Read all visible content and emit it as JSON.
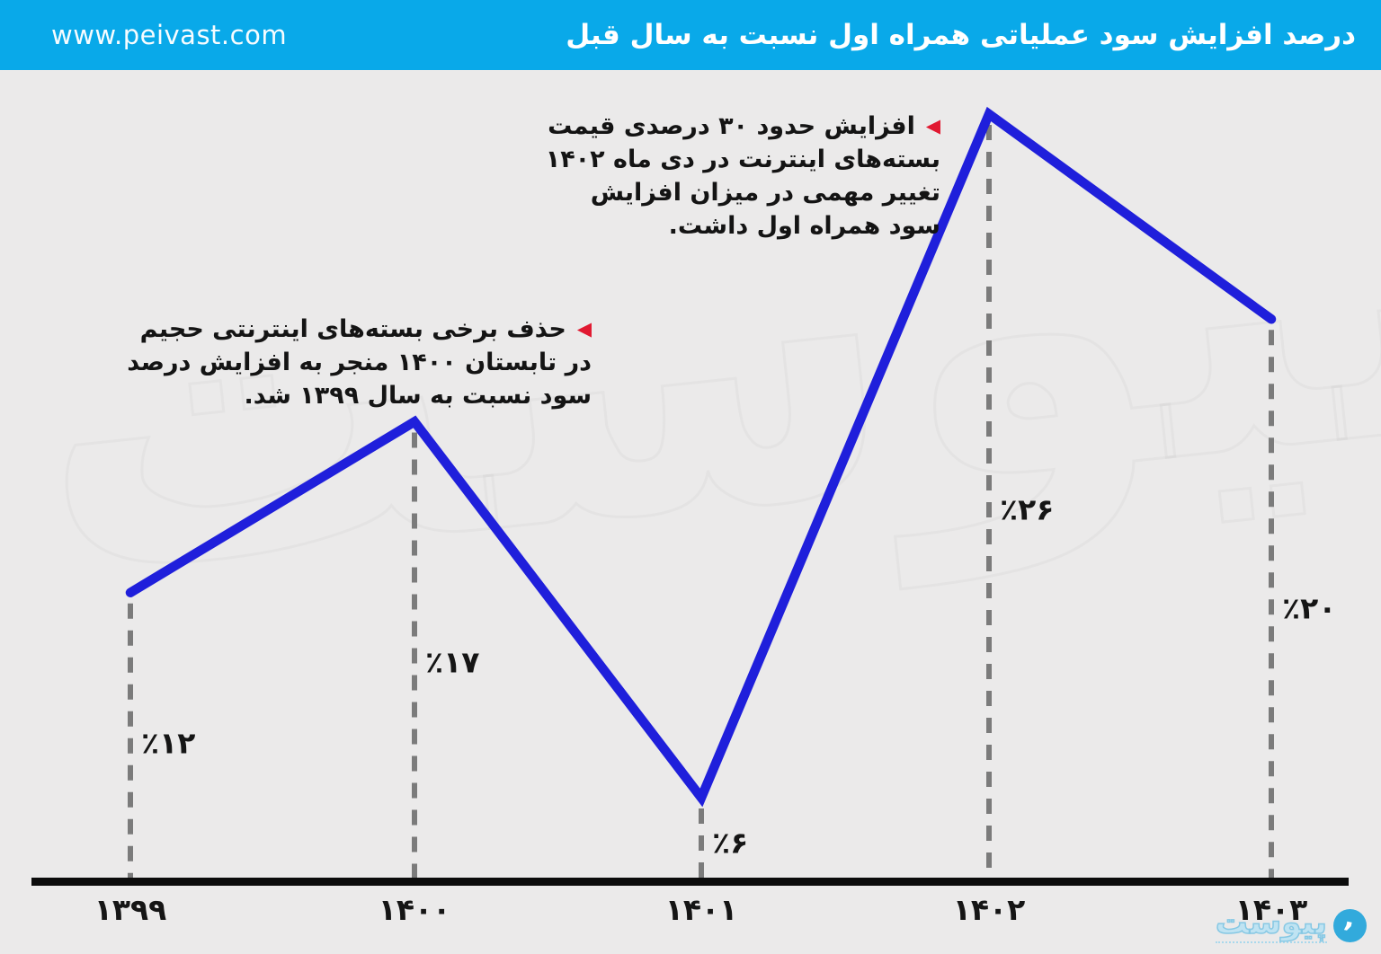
{
  "header": {
    "url": "www.peivast.com",
    "title": "درصد افزایش سود عملیاتی همراه اول نسبت به سال قبل",
    "background_color": "#09a9e9"
  },
  "chart_data": {
    "type": "line",
    "title": "درصد افزایش سود عملیاتی همراه اول نسبت به سال قبل",
    "categories": [
      "۱۳۹۹",
      "۱۴۰۰",
      "۱۴۰۱",
      "۱۴۰۲",
      "۱۴۰۳"
    ],
    "categories_western": [
      1399,
      1400,
      1401,
      1402,
      1403
    ],
    "values": [
      12,
      17,
      6,
      26,
      20
    ],
    "value_labels": [
      "٪۱۲",
      "٪۱۷",
      "٪۶",
      "٪۲۶",
      "٪۲۰"
    ],
    "unit": "percent",
    "ylim": [
      0,
      30
    ],
    "grid": false,
    "legend": false,
    "line_color": "#1f1fdb",
    "axis_color": "#0c0c0c",
    "dashed_guide_color": "#7b7b7b",
    "label_color": "#151515"
  },
  "annotations": [
    {
      "marker": "◀",
      "marker_color": "#e11931",
      "lines": [
        "افزایش حدود ۳۰ درصدی قیمت",
        "بسته‌های اینترنت در دی ماه ۱۴۰۲",
        "تغییر مهمی در میزان افزایش",
        "سود همراه اول داشت."
      ]
    },
    {
      "marker": "◀",
      "marker_color": "#e11931",
      "lines": [
        "حذف برخی بسته‌های اینترنتی حجیم",
        "در تابستان ۱۴۰۰ منجر به افزایش درصد",
        "سود نسبت به سال ۱۳۹۹ شد."
      ]
    }
  ],
  "footer": {
    "logo_text": "پیوست"
  },
  "watermark_text": "پیوست"
}
